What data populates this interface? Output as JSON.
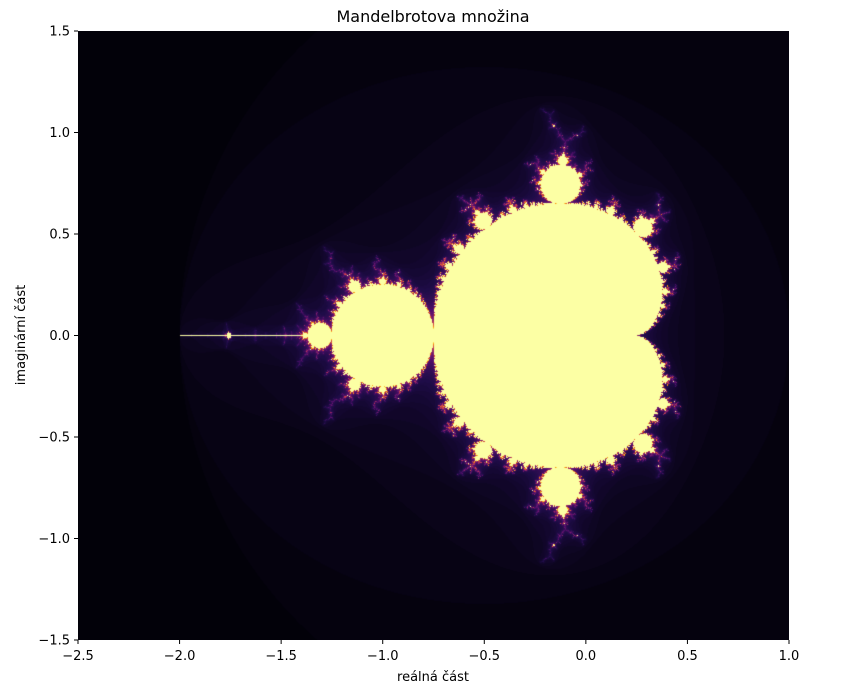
{
  "chart_data": {
    "type": "heatmap",
    "title": "Mandelbrotova množina",
    "xlabel": "reálná část",
    "ylabel": "imaginární část",
    "xlim": [
      -2.5,
      1.0
    ],
    "ylim": [
      -1.5,
      1.5
    ],
    "xticks": [
      -2.5,
      -2.0,
      -1.5,
      -1.0,
      -0.5,
      0.0,
      0.5,
      1.0
    ],
    "xtick_labels": [
      "−2.5",
      "−2.0",
      "−1.5",
      "−1.0",
      "−0.5",
      "0.0",
      "0.5",
      "1.0"
    ],
    "yticks": [
      -1.5,
      -1.0,
      -0.5,
      0.0,
      0.5,
      1.0,
      1.5
    ],
    "ytick_labels": [
      "−1.5",
      "−1.0",
      "−0.5",
      "0.0",
      "0.5",
      "1.0",
      "1.5"
    ],
    "colormap": "inferno",
    "max_iterations": 100,
    "grid": false,
    "colors": {
      "set_interior": "#fcffa4",
      "background": "#000004",
      "axis": "#000000"
    }
  }
}
